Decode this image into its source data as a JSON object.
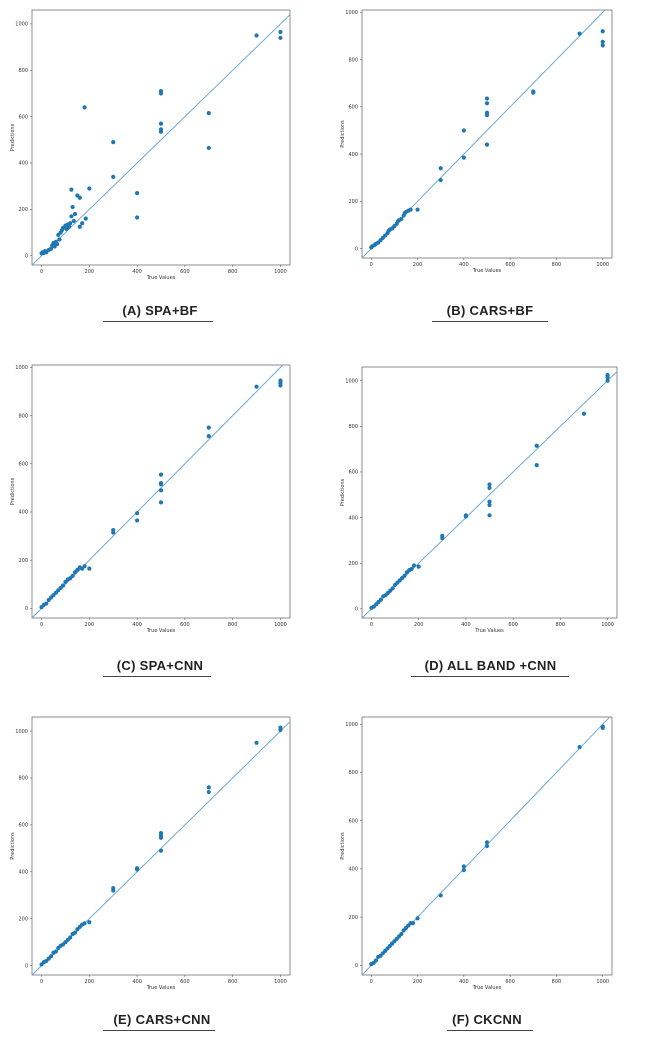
{
  "figure": {
    "panels": [
      {
        "caption": "(A)  SPA+BF",
        "xlabel": "True Values",
        "ylabel": "Predictions"
      },
      {
        "caption": "(B)  CARS+BF",
        "xlabel": "True Values",
        "ylabel": "Predictions"
      },
      {
        "caption": "(C)  SPA+CNN",
        "xlabel": "True Values",
        "ylabel": "Predictions"
      },
      {
        "caption": "(D)  ALL BAND +CNN",
        "xlabel": "True Values",
        "ylabel": "Predictions"
      },
      {
        "caption": "(E)  CARS+CNN",
        "xlabel": "True Values",
        "ylabel": "Predictions"
      },
      {
        "caption": "(F)  CKCNN",
        "xlabel": "True Values",
        "ylabel": "Predictions"
      }
    ]
  },
  "colors": {
    "points": "#1f77b4",
    "line": "#5fa2d6",
    "axis": "#444444"
  },
  "chart_data": [
    {
      "type": "scatter",
      "title": "(A)  SPA+BF",
      "xlabel": "True Values",
      "ylabel": "Predictions",
      "xticks": [
        0,
        200,
        400,
        600,
        800,
        1000
      ],
      "yticks": [
        0,
        200,
        400,
        600,
        800,
        1000
      ],
      "xlim": [
        -40,
        1040
      ],
      "ylim": [
        -40,
        1060
      ],
      "reference_line": "y = x",
      "points": [
        [
          0,
          10
        ],
        [
          5,
          15
        ],
        [
          10,
          12
        ],
        [
          15,
          20
        ],
        [
          20,
          15
        ],
        [
          30,
          25
        ],
        [
          40,
          30
        ],
        [
          45,
          45
        ],
        [
          50,
          55
        ],
        [
          55,
          40
        ],
        [
          60,
          60
        ],
        [
          65,
          50
        ],
        [
          70,
          90
        ],
        [
          75,
          70
        ],
        [
          80,
          100
        ],
        [
          85,
          110
        ],
        [
          90,
          120
        ],
        [
          100,
          130
        ],
        [
          105,
          115
        ],
        [
          110,
          135
        ],
        [
          115,
          125
        ],
        [
          120,
          140
        ],
        [
          125,
          170
        ],
        [
          130,
          210
        ],
        [
          125,
          285
        ],
        [
          135,
          150
        ],
        [
          140,
          180
        ],
        [
          150,
          260
        ],
        [
          160,
          250
        ],
        [
          160,
          125
        ],
        [
          170,
          140
        ],
        [
          180,
          640
        ],
        [
          185,
          160
        ],
        [
          200,
          290
        ],
        [
          300,
          490
        ],
        [
          300,
          340
        ],
        [
          400,
          270
        ],
        [
          400,
          165
        ],
        [
          500,
          710
        ],
        [
          500,
          700
        ],
        [
          500,
          570
        ],
        [
          500,
          545
        ],
        [
          500,
          535
        ],
        [
          700,
          615
        ],
        [
          700,
          465
        ],
        [
          900,
          950
        ],
        [
          1000,
          965
        ],
        [
          1000,
          940
        ]
      ]
    },
    {
      "type": "scatter",
      "title": "(B)  CARS+BF",
      "xlabel": "True Values",
      "ylabel": "Predictions",
      "xticks": [
        0,
        200,
        400,
        600,
        800,
        1000
      ],
      "yticks": [
        0,
        200,
        400,
        600,
        800,
        1000
      ],
      "xlim": [
        -40,
        1040
      ],
      "ylim": [
        -40,
        1010
      ],
      "reference_line": "y = x",
      "points": [
        [
          0,
          5
        ],
        [
          5,
          10
        ],
        [
          15,
          15
        ],
        [
          20,
          20
        ],
        [
          30,
          25
        ],
        [
          40,
          35
        ],
        [
          50,
          45
        ],
        [
          60,
          55
        ],
        [
          70,
          65
        ],
        [
          75,
          75
        ],
        [
          80,
          80
        ],
        [
          90,
          85
        ],
        [
          100,
          95
        ],
        [
          110,
          105
        ],
        [
          115,
          115
        ],
        [
          120,
          120
        ],
        [
          130,
          125
        ],
        [
          140,
          140
        ],
        [
          145,
          150
        ],
        [
          150,
          155
        ],
        [
          160,
          160
        ],
        [
          170,
          165
        ],
        [
          200,
          165
        ],
        [
          300,
          340
        ],
        [
          300,
          290
        ],
        [
          400,
          500
        ],
        [
          400,
          385
        ],
        [
          500,
          635
        ],
        [
          500,
          615
        ],
        [
          500,
          575
        ],
        [
          500,
          565
        ],
        [
          500,
          440
        ],
        [
          700,
          665
        ],
        [
          700,
          660
        ],
        [
          900,
          910
        ],
        [
          1000,
          920
        ],
        [
          1000,
          875
        ],
        [
          1000,
          860
        ]
      ]
    },
    {
      "type": "scatter",
      "title": "(C)  SPA+CNN",
      "xlabel": "True Values",
      "ylabel": "Predictions",
      "xticks": [
        0,
        200,
        400,
        600,
        800,
        1000
      ],
      "yticks": [
        0,
        200,
        400,
        600,
        800,
        1000
      ],
      "xlim": [
        -40,
        1040
      ],
      "ylim": [
        -40,
        1010
      ],
      "reference_line": "y = x",
      "points": [
        [
          0,
          5
        ],
        [
          10,
          15
        ],
        [
          20,
          20
        ],
        [
          30,
          35
        ],
        [
          40,
          45
        ],
        [
          50,
          55
        ],
        [
          60,
          65
        ],
        [
          70,
          75
        ],
        [
          80,
          85
        ],
        [
          90,
          95
        ],
        [
          100,
          110
        ],
        [
          110,
          120
        ],
        [
          120,
          125
        ],
        [
          130,
          135
        ],
        [
          140,
          150
        ],
        [
          150,
          160
        ],
        [
          160,
          170
        ],
        [
          170,
          165
        ],
        [
          180,
          175
        ],
        [
          200,
          165
        ],
        [
          300,
          325
        ],
        [
          300,
          315
        ],
        [
          400,
          395
        ],
        [
          400,
          365
        ],
        [
          500,
          555
        ],
        [
          500,
          520
        ],
        [
          500,
          515
        ],
        [
          500,
          490
        ],
        [
          500,
          440
        ],
        [
          700,
          750
        ],
        [
          700,
          715
        ],
        [
          900,
          920
        ],
        [
          1000,
          945
        ],
        [
          1000,
          935
        ],
        [
          1000,
          925
        ]
      ]
    },
    {
      "type": "scatter",
      "title": "(D)  ALL BAND +CNN",
      "xlabel": "True Values",
      "ylabel": "Predictions",
      "xticks": [
        0,
        200,
        400,
        600,
        800,
        1000
      ],
      "yticks": [
        0,
        200,
        400,
        600,
        800,
        1000
      ],
      "xlim": [
        -40,
        1040
      ],
      "ylim": [
        -40,
        1060
      ],
      "reference_line": "y = x",
      "points": [
        [
          0,
          5
        ],
        [
          10,
          10
        ],
        [
          20,
          20
        ],
        [
          30,
          30
        ],
        [
          40,
          40
        ],
        [
          50,
          55
        ],
        [
          60,
          60
        ],
        [
          70,
          70
        ],
        [
          80,
          80
        ],
        [
          90,
          90
        ],
        [
          100,
          105
        ],
        [
          110,
          115
        ],
        [
          120,
          125
        ],
        [
          130,
          135
        ],
        [
          140,
          145
        ],
        [
          150,
          160
        ],
        [
          160,
          170
        ],
        [
          170,
          175
        ],
        [
          180,
          190
        ],
        [
          200,
          185
        ],
        [
          300,
          320
        ],
        [
          300,
          310
        ],
        [
          400,
          410
        ],
        [
          400,
          405
        ],
        [
          500,
          545
        ],
        [
          500,
          530
        ],
        [
          500,
          470
        ],
        [
          500,
          455
        ],
        [
          500,
          410
        ],
        [
          700,
          715
        ],
        [
          700,
          630
        ],
        [
          900,
          855
        ],
        [
          1000,
          1025
        ],
        [
          1000,
          1015
        ],
        [
          1000,
          1000
        ]
      ]
    },
    {
      "type": "scatter",
      "title": "(E)  CARS+CNN",
      "xlabel": "True Values",
      "ylabel": "Predictions",
      "xticks": [
        0,
        200,
        400,
        600,
        800,
        1000
      ],
      "yticks": [
        0,
        200,
        400,
        600,
        800,
        1000
      ],
      "xlim": [
        -40,
        1040
      ],
      "ylim": [
        -40,
        1060
      ],
      "reference_line": "y = x",
      "points": [
        [
          0,
          5
        ],
        [
          10,
          15
        ],
        [
          20,
          20
        ],
        [
          30,
          30
        ],
        [
          40,
          40
        ],
        [
          50,
          55
        ],
        [
          60,
          60
        ],
        [
          70,
          75
        ],
        [
          80,
          85
        ],
        [
          90,
          90
        ],
        [
          100,
          100
        ],
        [
          110,
          110
        ],
        [
          120,
          120
        ],
        [
          130,
          135
        ],
        [
          140,
          140
        ],
        [
          150,
          155
        ],
        [
          160,
          165
        ],
        [
          170,
          175
        ],
        [
          180,
          180
        ],
        [
          200,
          185
        ],
        [
          300,
          330
        ],
        [
          300,
          320
        ],
        [
          400,
          415
        ],
        [
          400,
          410
        ],
        [
          500,
          565
        ],
        [
          500,
          555
        ],
        [
          500,
          545
        ],
        [
          500,
          490
        ],
        [
          700,
          760
        ],
        [
          700,
          740
        ],
        [
          900,
          950
        ],
        [
          1000,
          1015
        ],
        [
          1000,
          1005
        ]
      ]
    },
    {
      "type": "scatter",
      "title": "(F)  CKCNN",
      "xlabel": "True Values",
      "ylabel": "Predictions",
      "xticks": [
        0,
        200,
        400,
        600,
        800,
        1000
      ],
      "yticks": [
        0,
        200,
        400,
        600,
        800,
        1000
      ],
      "xlim": [
        -40,
        1040
      ],
      "ylim": [
        -40,
        1030
      ],
      "reference_line": "y = x",
      "points": [
        [
          0,
          5
        ],
        [
          10,
          10
        ],
        [
          20,
          20
        ],
        [
          30,
          35
        ],
        [
          40,
          40
        ],
        [
          50,
          50
        ],
        [
          60,
          60
        ],
        [
          70,
          70
        ],
        [
          80,
          80
        ],
        [
          90,
          90
        ],
        [
          100,
          100
        ],
        [
          110,
          110
        ],
        [
          120,
          120
        ],
        [
          130,
          130
        ],
        [
          140,
          145
        ],
        [
          150,
          155
        ],
        [
          160,
          165
        ],
        [
          170,
          175
        ],
        [
          180,
          175
        ],
        [
          200,
          195
        ],
        [
          300,
          290
        ],
        [
          400,
          410
        ],
        [
          400,
          395
        ],
        [
          500,
          510
        ],
        [
          500,
          495
        ],
        [
          900,
          905
        ],
        [
          1000,
          990
        ],
        [
          1000,
          985
        ]
      ]
    }
  ]
}
